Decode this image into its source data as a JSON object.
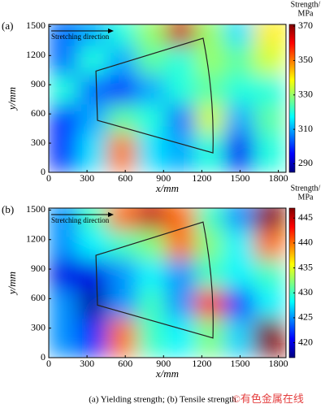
{
  "chart_data": [
    {
      "type": "contour",
      "panel_label": "(a)",
      "annotation": "Stretching direction",
      "xlabel": "x/mm",
      "ylabel": "y/mm",
      "colorbar_label": [
        "Strength/",
        "MPa"
      ],
      "xlim": [
        0,
        1860
      ],
      "ylim": [
        0,
        1520
      ],
      "xticks": [
        0,
        300,
        600,
        900,
        1200,
        1500,
        1800
      ],
      "yticks": [
        0,
        300,
        600,
        900,
        1200,
        1500
      ],
      "clim": [
        285,
        371
      ],
      "cticks": [
        290,
        310,
        330,
        350,
        370
      ],
      "colormap": "jet",
      "x": [
        120,
        350,
        580,
        810,
        1040,
        1270,
        1500,
        1730
      ],
      "y": [
        1400,
        1100,
        800,
        500,
        200
      ],
      "z": [
        [
          305,
          310,
          320,
          330,
          365,
          330,
          315,
          340
        ],
        [
          305,
          320,
          310,
          325,
          320,
          330,
          325,
          335
        ],
        [
          320,
          305,
          300,
          310,
          320,
          325,
          320,
          320
        ],
        [
          300,
          310,
          325,
          320,
          305,
          335,
          310,
          325
        ],
        [
          300,
          315,
          350,
          315,
          310,
          320,
          295,
          320
        ]
      ]
    },
    {
      "type": "contour",
      "panel_label": "(b)",
      "annotation": "Stretching direction",
      "xlabel": "x/mm",
      "ylabel": "y/mm",
      "colorbar_label": [
        "Strength/",
        "MPa"
      ],
      "xlim": [
        0,
        1860
      ],
      "ylim": [
        0,
        1520
      ],
      "xticks": [
        0,
        300,
        600,
        900,
        1200,
        1500,
        1800
      ],
      "yticks": [
        0,
        300,
        600,
        900,
        1200,
        1500
      ],
      "clim": [
        417,
        447
      ],
      "cticks": [
        420,
        425,
        430,
        435,
        440,
        445
      ],
      "colormap": "jet",
      "x": [
        120,
        350,
        580,
        810,
        1040,
        1270,
        1500,
        1730
      ],
      "y": [
        1400,
        1100,
        800,
        500,
        200
      ],
      "z": [
        [
          425,
          430,
          440,
          445,
          440,
          430,
          425,
          447
        ],
        [
          425,
          428,
          430,
          432,
          440,
          432,
          428,
          440
        ],
        [
          420,
          420,
          425,
          428,
          425,
          430,
          428,
          430
        ],
        [
          425,
          418,
          425,
          430,
          425,
          442,
          422,
          428
        ],
        [
          425,
          422,
          440,
          430,
          428,
          432,
          427,
          447
        ]
      ]
    }
  ],
  "caption": "(a) Yielding strength; (b) Tensile strength",
  "watermark": "©有色金属在线"
}
